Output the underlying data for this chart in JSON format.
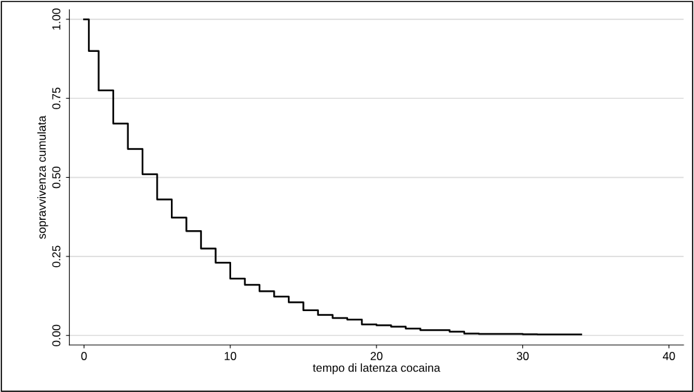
{
  "chart_data": {
    "type": "step",
    "xlabel": "tempo di latenza cocaina",
    "ylabel": "sopravvivenza cumulata",
    "x": [
      0,
      0.33,
      1,
      2,
      3,
      4,
      5,
      6,
      7,
      8,
      9,
      10,
      11,
      12,
      13,
      14,
      15,
      16,
      17,
      18,
      19,
      20,
      21,
      22,
      23,
      25,
      26,
      27,
      30,
      31,
      34
    ],
    "series": [
      {
        "color": "#000000",
        "values": [
          1.0,
          0.9,
          0.775,
          0.67,
          0.59,
          0.51,
          0.43,
          0.373,
          0.33,
          0.275,
          0.23,
          0.18,
          0.16,
          0.14,
          0.123,
          0.105,
          0.08,
          0.065,
          0.055,
          0.05,
          0.035,
          0.032,
          0.028,
          0.022,
          0.017,
          0.012,
          0.006,
          0.005,
          0.004,
          0.003,
          0.003
        ]
      }
    ],
    "xlim": [
      -1,
      41
    ],
    "ylim": [
      -0.03,
      1.03
    ],
    "xticks": [
      0,
      10,
      20,
      30,
      40
    ],
    "yticks": [
      {
        "value": 0,
        "label": "0.00"
      },
      {
        "value": 0.25,
        "label": "0.25"
      },
      {
        "value": 0.5,
        "label": "0.50"
      },
      {
        "value": 0.75,
        "label": "0.75"
      },
      {
        "value": 1,
        "label": "1.00"
      }
    ],
    "grid": "y",
    "legend": false
  }
}
